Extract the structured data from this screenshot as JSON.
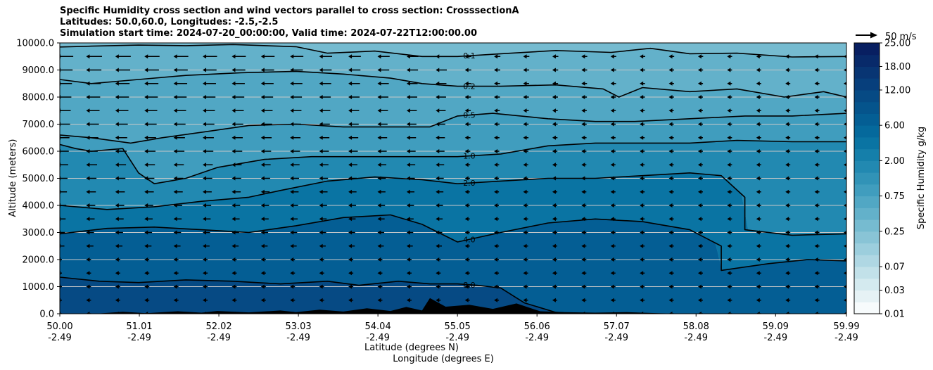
{
  "title": {
    "line1": "Specific Humidity cross section and wind vectors parallel to cross section: CrosssectionA",
    "line2": "Latitudes: 50.0,60.0, Longitudes: -2.5,-2.5",
    "line3": "Simulation start time: 2024-07-20_00:00:00, Valid time: 2024-07-22T12:00:00.00"
  },
  "chart_data": {
    "type": "heatmap",
    "ylabel": "Altitude (meters)",
    "xlabel_line1": "Latitude (degrees N)",
    "xlabel_line2": "Longitude (degrees E)",
    "ylim": [
      0,
      10000
    ],
    "yticks": [
      "0.0",
      "1000.0",
      "2000.0",
      "3000.0",
      "4000.0",
      "5000.0",
      "6000.0",
      "7000.0",
      "8000.0",
      "9000.0",
      "10000.0"
    ],
    "ytick_values": [
      0,
      1000,
      2000,
      3000,
      4000,
      5000,
      6000,
      7000,
      8000,
      9000,
      10000
    ],
    "xlim": [
      50.0,
      59.99
    ],
    "xticks": [
      {
        "lat": "50.00",
        "lon": "-2.49",
        "value": 50.0
      },
      {
        "lat": "51.01",
        "lon": "-2.49",
        "value": 51.01
      },
      {
        "lat": "52.02",
        "lon": "-2.49",
        "value": 52.02
      },
      {
        "lat": "53.03",
        "lon": "-2.49",
        "value": 53.03
      },
      {
        "lat": "54.04",
        "lon": "-2.49",
        "value": 54.04
      },
      {
        "lat": "55.05",
        "lon": "-2.49",
        "value": 55.05
      },
      {
        "lat": "56.06",
        "lon": "-2.49",
        "value": 56.06
      },
      {
        "lat": "57.07",
        "lon": "-2.49",
        "value": 57.07
      },
      {
        "lat": "58.08",
        "lon": "-2.49",
        "value": 58.08
      },
      {
        "lat": "59.09",
        "lon": "-2.49",
        "value": 59.09
      },
      {
        "lat": "59.99",
        "lon": "-2.49",
        "value": 59.99
      }
    ],
    "grid": "horizontal",
    "colorbar": {
      "label": "Specific Humidity g/kg",
      "levels": [
        0.01,
        0.02,
        0.03,
        0.05,
        0.07,
        0.1,
        0.15,
        0.25,
        0.35,
        0.5,
        0.75,
        1.0,
        1.5,
        2.0,
        3.0,
        4.0,
        6.0,
        8.0,
        10.0,
        12.0,
        15.0,
        18.0,
        21.0,
        25.0
      ],
      "tick_labels": [
        "0.01",
        "0.03",
        "0.07",
        "0.25",
        "0.75",
        "2.00",
        "6.00",
        "12.00",
        "18.00",
        "25.00"
      ],
      "tick_level_index": [
        0,
        2,
        4,
        7,
        10,
        13,
        16,
        19,
        21,
        23
      ],
      "colors": [
        "#f7fbfc",
        "#e6f2f5",
        "#d4eaef",
        "#c2e1e9",
        "#afd7e3",
        "#9ccedd",
        "#89c4d6",
        "#76bbd0",
        "#63b1ca",
        "#51a7c4",
        "#409dbe",
        "#3193b7",
        "#2289b1",
        "#157faa",
        "#0a74a3",
        "#05699c",
        "#045e94",
        "#05548c",
        "#064a84",
        "#073f7c",
        "#083573",
        "#082a6a",
        "#081f61"
      ]
    },
    "contours": [
      {
        "label": "0.1",
        "points": [
          [
            50.0,
            9850
          ],
          [
            50.4,
            9880
          ],
          [
            51.0,
            9920
          ],
          [
            51.6,
            9900
          ],
          [
            52.2,
            9940
          ],
          [
            53.0,
            9860
          ],
          [
            53.4,
            9620
          ],
          [
            54.0,
            9700
          ],
          [
            54.6,
            9500
          ],
          [
            55.05,
            9500
          ],
          [
            55.6,
            9600
          ],
          [
            56.3,
            9720
          ],
          [
            57.0,
            9650
          ],
          [
            57.5,
            9800
          ],
          [
            58.0,
            9600
          ],
          [
            58.6,
            9620
          ],
          [
            59.3,
            9480
          ],
          [
            59.99,
            9500
          ]
        ]
      },
      {
        "label": "0.2",
        "points": [
          [
            50.0,
            8650
          ],
          [
            50.4,
            8500
          ],
          [
            51.0,
            8650
          ],
          [
            51.6,
            8800
          ],
          [
            52.3,
            8900
          ],
          [
            53.0,
            8950
          ],
          [
            53.6,
            8850
          ],
          [
            54.2,
            8700
          ],
          [
            54.6,
            8500
          ],
          [
            55.05,
            8400
          ],
          [
            55.6,
            8400
          ],
          [
            56.3,
            8450
          ],
          [
            56.9,
            8300
          ],
          [
            57.1,
            8000
          ],
          [
            57.4,
            8350
          ],
          [
            58.0,
            8200
          ],
          [
            58.6,
            8300
          ],
          [
            59.2,
            8000
          ],
          [
            59.7,
            8200
          ],
          [
            59.99,
            8000
          ]
        ]
      },
      {
        "label": "0.5",
        "points": [
          [
            50.0,
            6600
          ],
          [
            50.4,
            6500
          ],
          [
            50.9,
            6300
          ],
          [
            51.3,
            6500
          ],
          [
            51.8,
            6700
          ],
          [
            52.4,
            6950
          ],
          [
            53.0,
            7000
          ],
          [
            53.6,
            6900
          ],
          [
            54.2,
            6900
          ],
          [
            54.7,
            6900
          ],
          [
            55.05,
            7300
          ],
          [
            55.5,
            7400
          ],
          [
            56.2,
            7200
          ],
          [
            56.8,
            7100
          ],
          [
            57.3,
            7100
          ],
          [
            58.0,
            7200
          ],
          [
            58.7,
            7300
          ],
          [
            59.3,
            7300
          ],
          [
            59.99,
            7400
          ]
        ]
      },
      {
        "label": "1.0",
        "points": [
          [
            50.0,
            6250
          ],
          [
            50.2,
            6100
          ],
          [
            50.4,
            6000
          ],
          [
            50.8,
            6100
          ],
          [
            51.0,
            5200
          ],
          [
            51.2,
            4800
          ],
          [
            51.6,
            5000
          ],
          [
            52.0,
            5400
          ],
          [
            52.6,
            5700
          ],
          [
            53.2,
            5800
          ],
          [
            53.8,
            5800
          ],
          [
            54.4,
            5800
          ],
          [
            55.05,
            5800
          ],
          [
            55.6,
            5900
          ],
          [
            56.2,
            6200
          ],
          [
            56.8,
            6300
          ],
          [
            57.4,
            6300
          ],
          [
            58.0,
            6300
          ],
          [
            58.6,
            6400
          ],
          [
            59.3,
            6350
          ],
          [
            59.99,
            6350
          ]
        ]
      },
      {
        "label": "2.0",
        "points": [
          [
            50.0,
            4000
          ],
          [
            50.6,
            3850
          ],
          [
            51.2,
            3950
          ],
          [
            51.8,
            4150
          ],
          [
            52.4,
            4300
          ],
          [
            52.8,
            4550
          ],
          [
            53.4,
            4900
          ],
          [
            54.0,
            5050
          ],
          [
            54.6,
            4950
          ],
          [
            55.05,
            4800
          ],
          [
            55.6,
            4900
          ],
          [
            56.2,
            5000
          ],
          [
            56.8,
            5000
          ],
          [
            57.4,
            5100
          ],
          [
            58.0,
            5200
          ],
          [
            58.4,
            5100
          ],
          [
            58.7,
            4300
          ],
          [
            58.7,
            3100
          ],
          [
            59.3,
            2900
          ],
          [
            59.99,
            2950
          ]
        ]
      },
      {
        "label": "4.0",
        "points": [
          [
            50.0,
            2950
          ],
          [
            50.6,
            3150
          ],
          [
            51.2,
            3200
          ],
          [
            51.8,
            3100
          ],
          [
            52.4,
            3000
          ],
          [
            53.0,
            3250
          ],
          [
            53.6,
            3550
          ],
          [
            54.2,
            3650
          ],
          [
            54.6,
            3300
          ],
          [
            55.05,
            2650
          ],
          [
            55.6,
            3000
          ],
          [
            56.2,
            3350
          ],
          [
            56.8,
            3500
          ],
          [
            57.4,
            3400
          ],
          [
            58.0,
            3100
          ],
          [
            58.4,
            2500
          ],
          [
            58.4,
            1600
          ],
          [
            59.0,
            1850
          ],
          [
            59.5,
            2000
          ],
          [
            59.99,
            1950
          ]
        ]
      },
      {
        "label": "8.0",
        "points": [
          [
            50.0,
            1350
          ],
          [
            50.5,
            1200
          ],
          [
            51.0,
            1150
          ],
          [
            51.6,
            1250
          ],
          [
            52.2,
            1200
          ],
          [
            52.8,
            1100
          ],
          [
            53.4,
            1200
          ],
          [
            53.8,
            1050
          ],
          [
            54.3,
            1200
          ],
          [
            54.7,
            1100
          ],
          [
            55.05,
            1100
          ],
          [
            55.3,
            1050
          ],
          [
            55.6,
            950
          ],
          [
            55.9,
            400
          ],
          [
            56.3,
            50
          ],
          [
            56.6,
            0
          ]
        ]
      }
    ]
  }
}
